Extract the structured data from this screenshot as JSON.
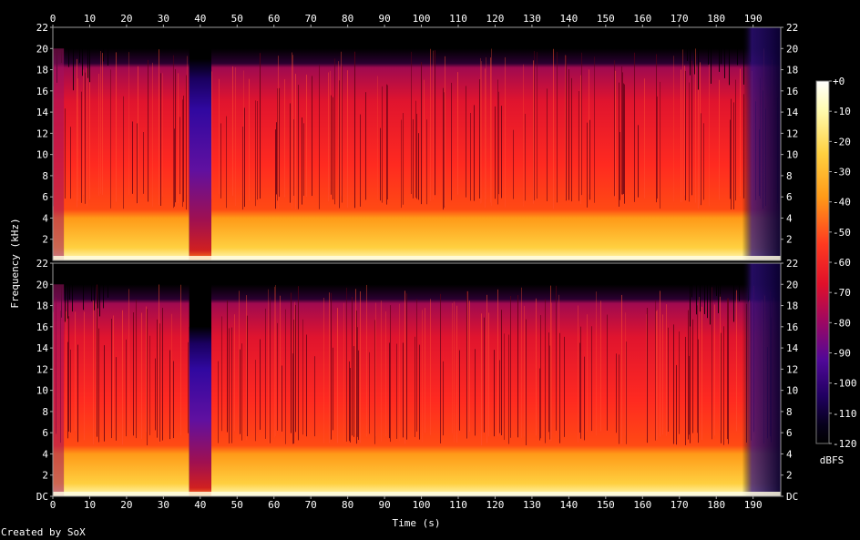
{
  "chart_data": {
    "type": "heatmap",
    "xlabel": "Time (s)",
    "ylabel": "Frequency (kHz)",
    "x_ticks": [
      "0",
      "10",
      "20",
      "30",
      "40",
      "50",
      "60",
      "70",
      "80",
      "90",
      "100",
      "110",
      "120",
      "130",
      "140",
      "150",
      "160",
      "170",
      "180",
      "190"
    ],
    "y_ticks_top": [
      "2",
      "4",
      "6",
      "8",
      "10",
      "12",
      "14",
      "16",
      "18",
      "20",
      "22"
    ],
    "y_ticks_bottom": [
      "DC",
      "2",
      "4",
      "6",
      "8",
      "10",
      "12",
      "14",
      "16",
      "18",
      "20",
      "22"
    ],
    "xlim": [
      0,
      197.5
    ],
    "ylim_khz": [
      0,
      22
    ],
    "channels": 2,
    "colorbar": {
      "label": "dBFS",
      "ticks": [
        "+0",
        "-10",
        "-20",
        "-30",
        "-40",
        "-50",
        "-60",
        "-70",
        "-80",
        "-90",
        "-100",
        "-110",
        "-120"
      ],
      "range": [
        -120,
        0
      ]
    },
    "content_cutoff_khz": 20,
    "quiet_segment_s": [
      37,
      43
    ],
    "fade_out_start_s": 187,
    "colors": {
      "background": "#000000",
      "loud": "#ffffc0",
      "mid": "#ff2020",
      "quiet": "#200060"
    }
  },
  "credit": "Created by SoX"
}
